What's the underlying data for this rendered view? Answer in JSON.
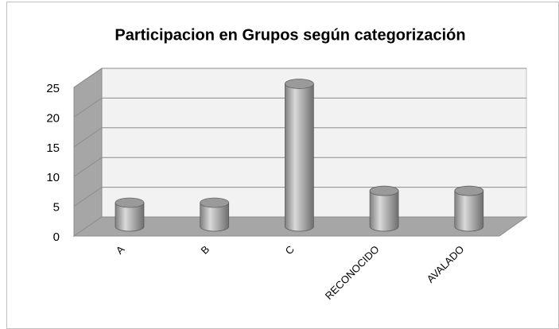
{
  "chart_data": {
    "type": "bar3d",
    "title": "Participacion  en Grupos según categorización",
    "categories": [
      "A",
      "B",
      "C",
      "RECONOCIDO",
      "AVALADO"
    ],
    "values": [
      4,
      4,
      24,
      6,
      6
    ],
    "color": "#a6a6a6",
    "ylim": [
      0,
      25
    ],
    "yticks": [
      0,
      5,
      10,
      15,
      20,
      25
    ],
    "grid": true
  }
}
